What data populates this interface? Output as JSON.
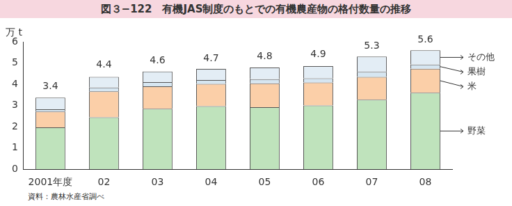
{
  "chart_data": {
    "type": "bar",
    "title": "図３−122　有機JAS制度のもとでの有機農産物の格付数量の推移",
    "y_label": "万 t",
    "source": "資料：農林水産省調べ",
    "categories": [
      "2001年度",
      "02",
      "03",
      "04",
      "05",
      "06",
      "07",
      "08"
    ],
    "series": [
      {
        "name": "野菜",
        "color": "#bfe3bc",
        "values": [
          1.97,
          2.45,
          2.85,
          2.97,
          2.92,
          3.0,
          3.27,
          3.6
        ]
      },
      {
        "name": "米",
        "color": "#fbcfa8",
        "values": [
          0.75,
          1.22,
          1.05,
          1.05,
          1.12,
          1.08,
          1.08,
          1.13
        ]
      },
      {
        "name": "果樹",
        "color": "#d6e6f1",
        "values": [
          0.1,
          0.18,
          0.2,
          0.18,
          0.2,
          0.2,
          0.23,
          0.2
        ]
      },
      {
        "name": "その他",
        "color": "#e3edf5",
        "values": [
          0.55,
          0.5,
          0.5,
          0.52,
          0.55,
          0.57,
          0.72,
          0.67
        ]
      }
    ],
    "totals": [
      3.4,
      4.4,
      4.6,
      4.7,
      4.8,
      4.9,
      5.3,
      5.6
    ],
    "stacked": true,
    "ylim": [
      0,
      6
    ],
    "yticks": [
      0,
      1,
      2,
      3,
      4,
      5,
      6
    ],
    "grid": false,
    "legend": "right"
  }
}
